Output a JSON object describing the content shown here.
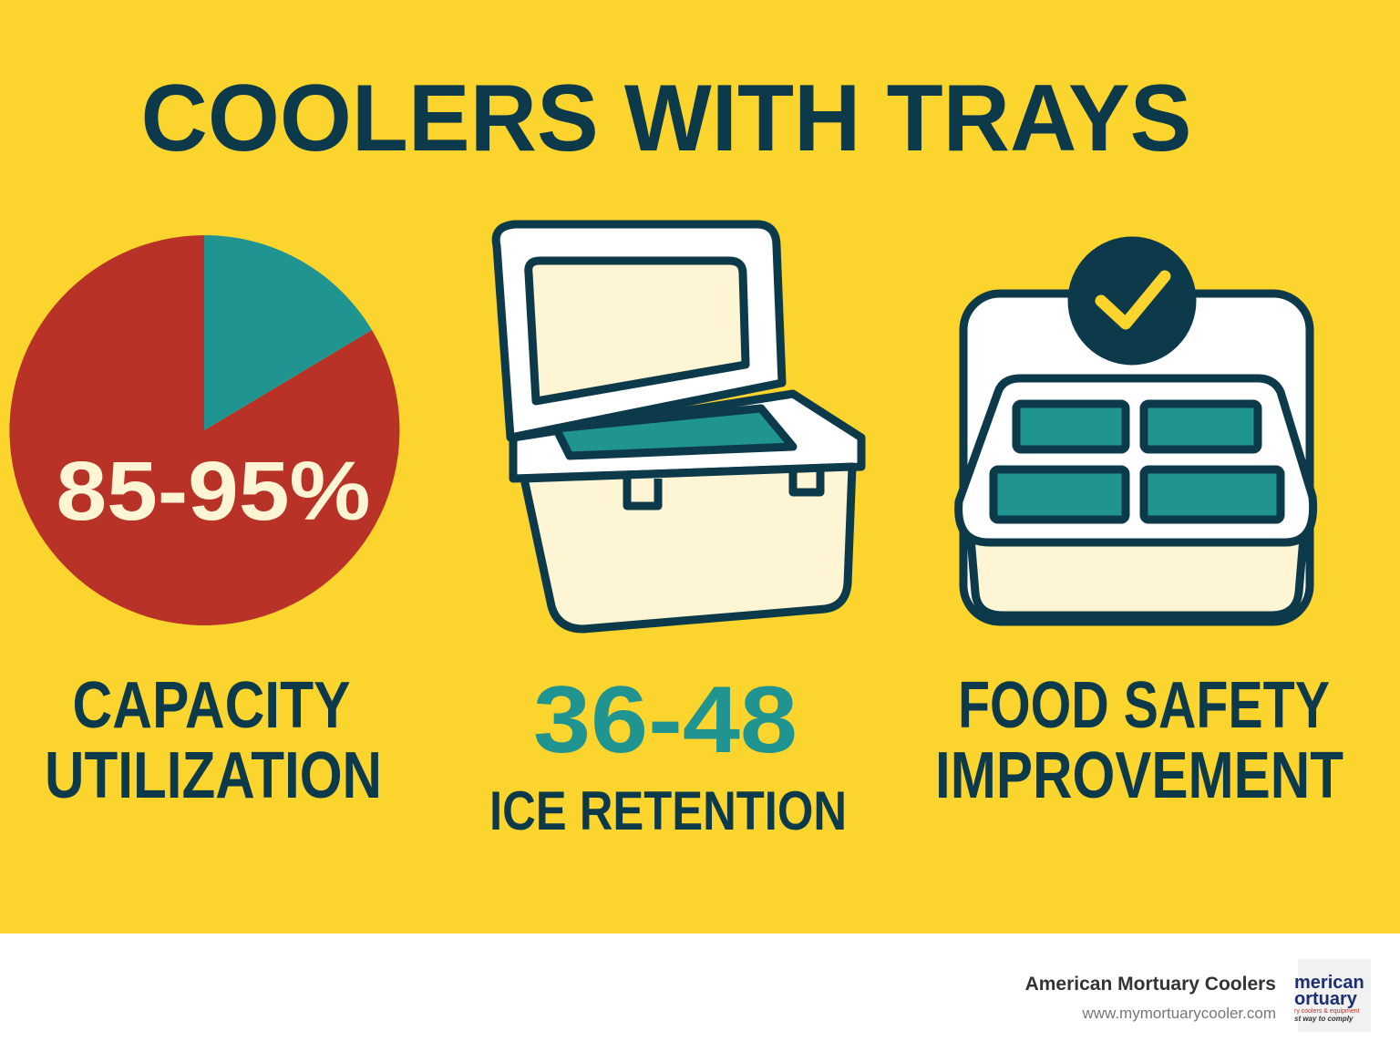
{
  "title": "COOLERS WITH TRAYS",
  "panels": [
    {
      "stat": "85-95%",
      "label_lines": [
        "CAPACITY",
        "UTILIZATION"
      ]
    },
    {
      "stat": "36-48",
      "label_lines": [
        "ICE RETENTION"
      ]
    },
    {
      "label_lines": [
        "FOOD SAFETY",
        "IMPROVEMENT"
      ]
    }
  ],
  "footer": {
    "company": "American Mortuary Coolers",
    "url": "www.mymortuarycooler.com",
    "logo_lines": [
      "merican",
      "ortuary",
      "ry coolers & equipment",
      "st way to comply"
    ]
  }
}
